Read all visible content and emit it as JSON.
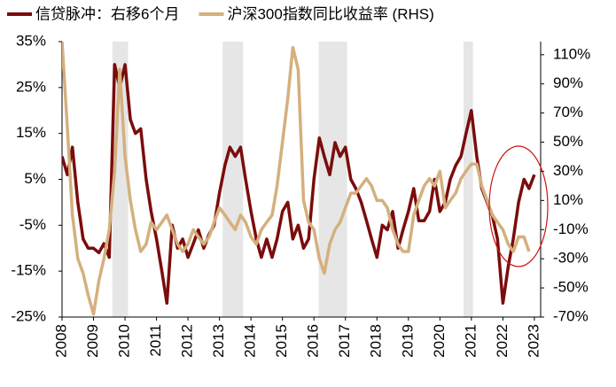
{
  "chart_data": {
    "type": "line",
    "x": [
      2008,
      2008.17,
      2008.33,
      2008.5,
      2008.67,
      2008.83,
      2009,
      2009.17,
      2009.33,
      2009.5,
      2009.67,
      2009.83,
      2010,
      2010.17,
      2010.33,
      2010.5,
      2010.67,
      2010.83,
      2011,
      2011.17,
      2011.33,
      2011.5,
      2011.67,
      2011.83,
      2012,
      2012.17,
      2012.33,
      2012.5,
      2012.67,
      2012.83,
      2013,
      2013.17,
      2013.33,
      2013.5,
      2013.67,
      2013.83,
      2014,
      2014.17,
      2014.33,
      2014.5,
      2014.67,
      2014.83,
      2015,
      2015.17,
      2015.33,
      2015.5,
      2015.67,
      2015.83,
      2016,
      2016.17,
      2016.33,
      2016.5,
      2016.67,
      2016.83,
      2017,
      2017.17,
      2017.33,
      2017.5,
      2017.67,
      2017.83,
      2018,
      2018.17,
      2018.33,
      2018.5,
      2018.67,
      2018.83,
      2019,
      2019.17,
      2019.33,
      2019.5,
      2019.67,
      2019.83,
      2020,
      2020.17,
      2020.33,
      2020.5,
      2020.67,
      2020.83,
      2021,
      2021.17,
      2021.33,
      2021.5,
      2021.67,
      2021.83,
      2022,
      2022.17,
      2022.33,
      2022.5,
      2022.67,
      2022.83,
      2023
    ],
    "series": [
      {
        "name": "信贷脉冲：右移6个月",
        "color": "#7b0c0c",
        "values": [
          10,
          6,
          12,
          0,
          -8,
          -10,
          -10,
          -11,
          -9,
          -12,
          30,
          25,
          30,
          18,
          15,
          16,
          5,
          -2,
          -8,
          -15,
          -22,
          -5,
          -10,
          -8,
          -12,
          -9,
          -6,
          -10,
          -7,
          -5,
          2,
          8,
          12,
          10,
          12,
          5,
          -2,
          -8,
          -12,
          -8,
          -12,
          -8,
          -2,
          0,
          -8,
          -5,
          -10,
          -8,
          5,
          14,
          10,
          6,
          13,
          10,
          12,
          5,
          3,
          0,
          -4,
          -8,
          -12,
          -5,
          -6,
          -2,
          -10,
          -6,
          -2,
          3,
          -4,
          -4,
          -2,
          5,
          -2,
          0,
          5,
          8,
          10,
          15,
          20,
          10,
          3,
          0,
          -3,
          -8,
          -22,
          -14,
          -8,
          0,
          5,
          3,
          6
        ]
      },
      {
        "name": "沪深300指数同比收益率 (RHS)",
        "color": "#d4b07e",
        "axis": "y2",
        "values": [
          119,
          60,
          0,
          -30,
          -40,
          -55,
          -68,
          -45,
          -30,
          -10,
          30,
          100,
          40,
          10,
          -10,
          -25,
          -20,
          -5,
          -10,
          -5,
          0,
          -10,
          -20,
          -25,
          -20,
          -10,
          -15,
          -20,
          -15,
          -5,
          5,
          0,
          -5,
          -10,
          0,
          -5,
          -15,
          -20,
          -10,
          -5,
          0,
          20,
          50,
          80,
          115,
          100,
          10,
          -5,
          -10,
          -30,
          -40,
          -20,
          -10,
          -5,
          5,
          15,
          15,
          20,
          25,
          20,
          10,
          10,
          5,
          -10,
          -20,
          -25,
          -25,
          0,
          10,
          20,
          25,
          20,
          30,
          5,
          10,
          15,
          25,
          30,
          35,
          35,
          20,
          10,
          0,
          -5,
          -10,
          -20,
          -25,
          -15,
          -15,
          -25,
          null
        ]
      }
    ],
    "xlim": [
      2008,
      2023.2
    ],
    "xticks": [
      2008,
      2009,
      2010,
      2011,
      2012,
      2013,
      2014,
      2015,
      2016,
      2017,
      2018,
      2019,
      2020,
      2021,
      2022,
      2023
    ],
    "ylim": [
      -25,
      35
    ],
    "yticks": [
      {
        "value": 35,
        "label": "35%"
      },
      {
        "value": 25,
        "label": "25%"
      },
      {
        "value": 15,
        "label": "15%"
      },
      {
        "value": 5,
        "label": "5%"
      },
      {
        "value": -5,
        "label": "-5%"
      },
      {
        "value": -15,
        "label": "-15%"
      },
      {
        "value": -25,
        "label": "-25%"
      }
    ],
    "y2lim": [
      -70,
      119
    ],
    "y2ticks": [
      {
        "value": 110,
        "label": "110%"
      },
      {
        "value": 90,
        "label": "90%"
      },
      {
        "value": 70,
        "label": "70%"
      },
      {
        "value": 50,
        "label": "50%"
      },
      {
        "value": 30,
        "label": "30%"
      },
      {
        "value": 10,
        "label": "10%"
      },
      {
        "value": -10,
        "label": "-10%"
      },
      {
        "value": -30,
        "label": "-30%"
      },
      {
        "value": -50,
        "label": "-50%"
      },
      {
        "value": -70,
        "label": "-70%"
      }
    ],
    "shaded_periods": [
      [
        2009.6,
        2010.1
      ],
      [
        2013.1,
        2013.75
      ],
      [
        2016.15,
        2017.05
      ],
      [
        2020.75,
        2021.05
      ]
    ],
    "shade_color": "#e6e6e6",
    "grid": false
  }
}
